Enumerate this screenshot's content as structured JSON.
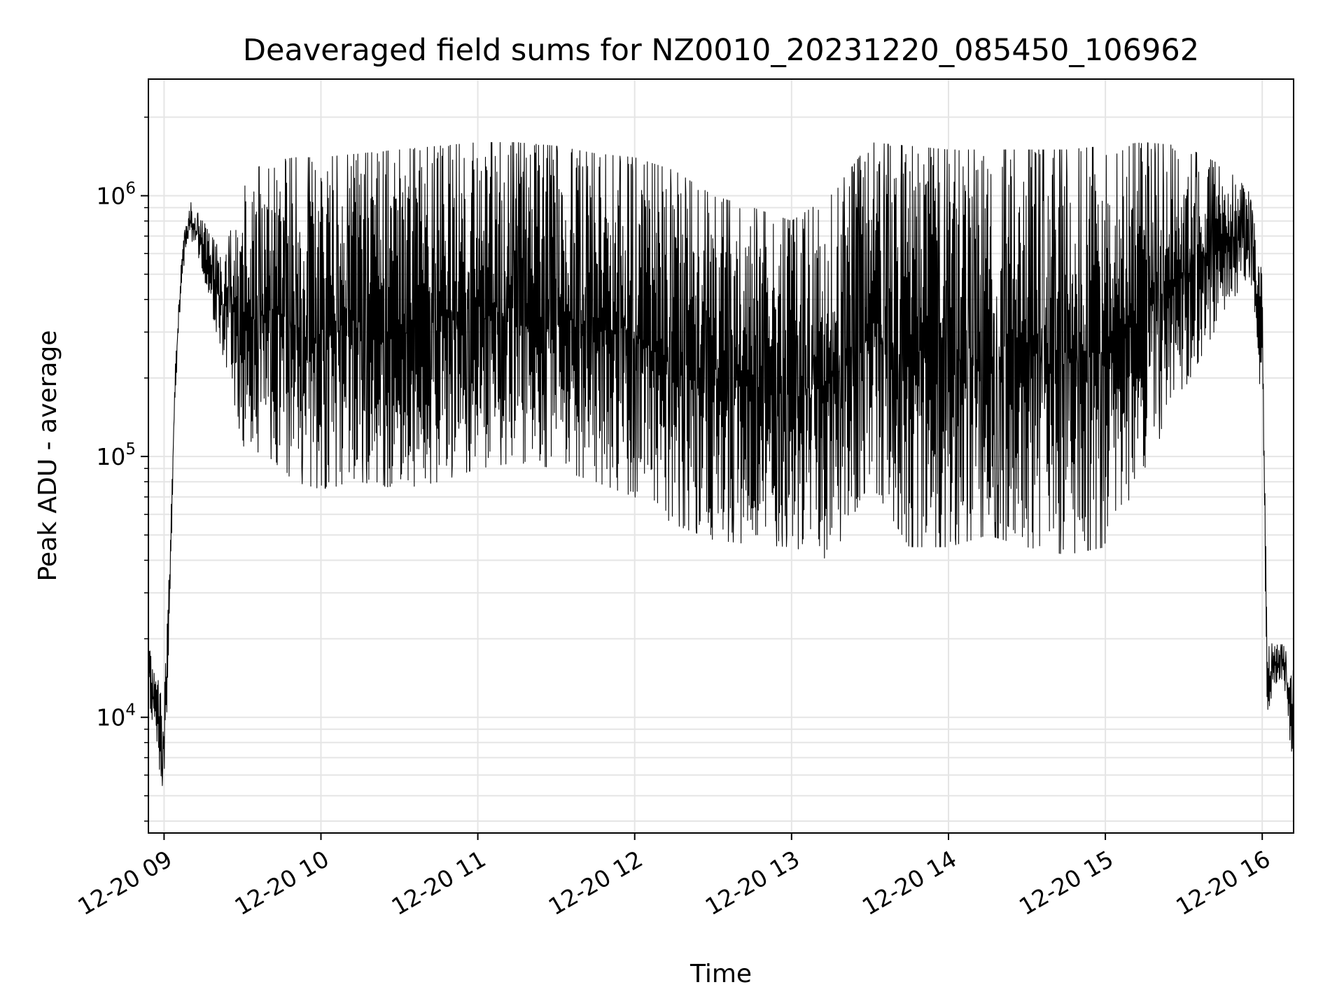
{
  "chart_data": {
    "type": "line",
    "title": "Deaveraged field sums for NZ0010_20231220_085450_106962",
    "xlabel": "Time",
    "ylabel": "Peak ADU - average",
    "y_scale": "log",
    "grid": true,
    "line_color": "#000000",
    "grid_color": "#e5e5e5",
    "xlim": [
      "2023-12-20 08:54",
      "2023-12-20 16:12"
    ],
    "ylim": [
      3600,
      2800000
    ],
    "x_ticks": [
      {
        "value": "2023-12-20 09:00",
        "label": "12-20 09"
      },
      {
        "value": "2023-12-20 10:00",
        "label": "12-20 10"
      },
      {
        "value": "2023-12-20 11:00",
        "label": "12-20 11"
      },
      {
        "value": "2023-12-20 12:00",
        "label": "12-20 12"
      },
      {
        "value": "2023-12-20 13:00",
        "label": "12-20 13"
      },
      {
        "value": "2023-12-20 14:00",
        "label": "12-20 14"
      },
      {
        "value": "2023-12-20 15:00",
        "label": "12-20 15"
      },
      {
        "value": "2023-12-20 16:00",
        "label": "12-20 16"
      }
    ],
    "y_ticks": [
      {
        "value": 10000,
        "base": "10",
        "exp": "4"
      },
      {
        "value": 100000,
        "base": "10",
        "exp": "5"
      },
      {
        "value": 1000000,
        "base": "10",
        "exp": "6"
      }
    ],
    "series": [
      {
        "x": [
          "2023-12-20 08:54",
          "2023-12-20 08:56",
          "2023-12-20 08:58",
          "2023-12-20 09:00",
          "2023-12-20 09:02",
          "2023-12-20 09:04",
          "2023-12-20 09:06",
          "2023-12-20 09:08",
          "2023-12-20 09:10",
          "2023-12-20 09:15",
          "2023-12-20 09:20",
          "2023-12-20 09:25",
          "2023-12-20 09:30",
          "2023-12-20 09:40",
          "2023-12-20 09:50",
          "2023-12-20 10:00",
          "2023-12-20 10:15",
          "2023-12-20 10:30",
          "2023-12-20 10:45",
          "2023-12-20 11:00",
          "2023-12-20 11:15",
          "2023-12-20 11:30",
          "2023-12-20 11:45",
          "2023-12-20 12:00",
          "2023-12-20 12:15",
          "2023-12-20 12:30",
          "2023-12-20 12:45",
          "2023-12-20 13:00",
          "2023-12-20 13:15",
          "2023-12-20 13:30",
          "2023-12-20 13:45",
          "2023-12-20 14:00",
          "2023-12-20 14:15",
          "2023-12-20 14:30",
          "2023-12-20 14:45",
          "2023-12-20 15:00",
          "2023-12-20 15:15",
          "2023-12-20 15:30",
          "2023-12-20 15:45",
          "2023-12-20 15:55",
          "2023-12-20 16:00",
          "2023-12-20 16:02",
          "2023-12-20 16:04",
          "2023-12-20 16:08",
          "2023-12-20 16:12"
        ],
        "hi": [
          19000,
          16000,
          14000,
          12000,
          40000,
          200000,
          500000,
          750000,
          950000,
          800000,
          650000,
          700000,
          1200000,
          1350000,
          1400000,
          1400000,
          1450000,
          1500000,
          1550000,
          1600000,
          1600000,
          1550000,
          1450000,
          1400000,
          1250000,
          1000000,
          900000,
          800000,
          1000000,
          1600000,
          1550000,
          1500000,
          1500000,
          1500000,
          1500000,
          1550000,
          1600000,
          1550000,
          1300000,
          1050000,
          500000,
          20000,
          19000,
          19000,
          15000
        ],
        "lo": [
          12000,
          9000,
          6500,
          5000,
          20000,
          150000,
          350000,
          600000,
          700000,
          500000,
          300000,
          200000,
          110000,
          100000,
          80000,
          75000,
          80000,
          75000,
          80000,
          90000,
          95000,
          90000,
          80000,
          70000,
          55000,
          48000,
          46000,
          45000,
          40000,
          80000,
          45000,
          45000,
          50000,
          45000,
          42000,
          45000,
          90000,
          180000,
          350000,
          500000,
          150000,
          9500,
          13000,
          14000,
          6000
        ]
      }
    ]
  }
}
